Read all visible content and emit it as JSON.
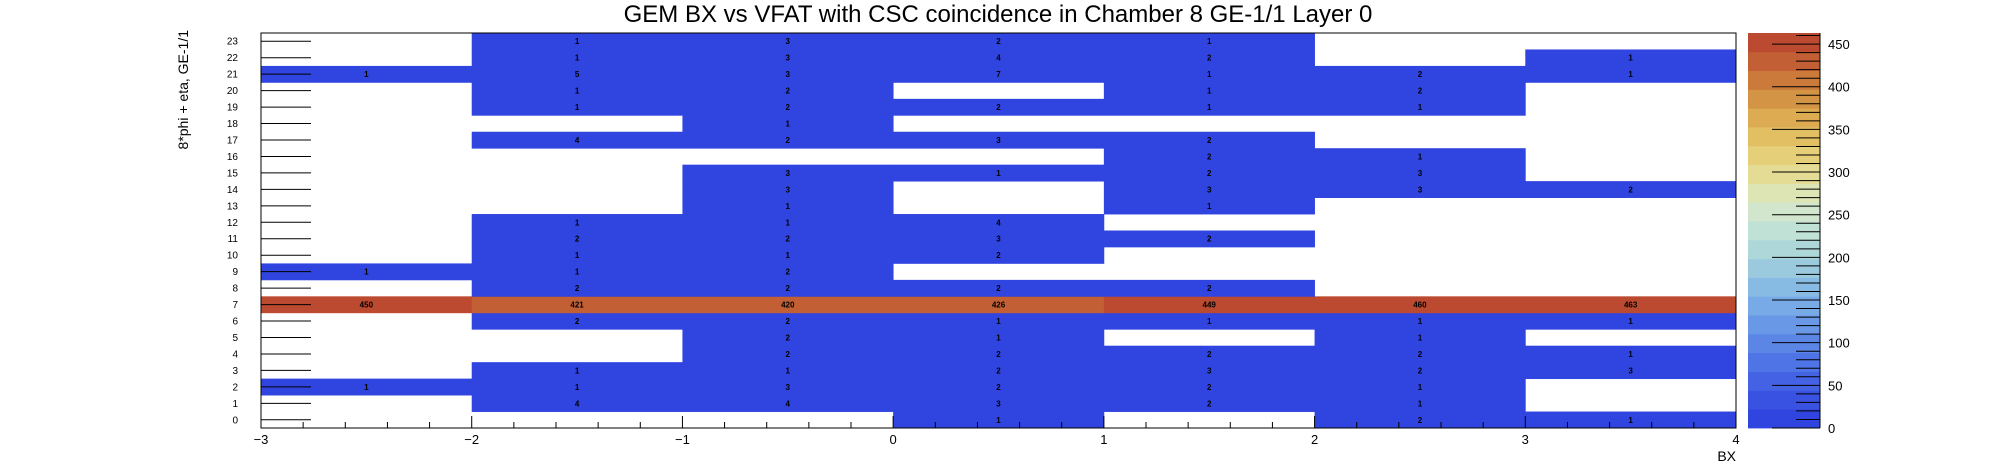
{
  "chart_data": {
    "type": "heatmap",
    "title": "GEM BX vs VFAT with CSC coincidence in Chamber 8 GE-1/1 Layer 0",
    "xlabel": "BX",
    "ylabel": "8*phi + eta, GE-1/1",
    "x_edges": [
      -3,
      -2,
      -1,
      0,
      1,
      2,
      3,
      4
    ],
    "x_tick_labels": [
      "−3",
      "−2",
      "−1",
      "0",
      "1",
      "2",
      "3",
      "4"
    ],
    "y_bins": [
      0,
      1,
      2,
      3,
      4,
      5,
      6,
      7,
      8,
      9,
      10,
      11,
      12,
      13,
      14,
      15,
      16,
      17,
      18,
      19,
      20,
      21,
      22,
      23
    ],
    "zlim": [
      0,
      463
    ],
    "z_ticks": [
      0,
      50,
      100,
      150,
      200,
      250,
      300,
      350,
      400,
      450
    ],
    "grid": false,
    "cells": [
      {
        "y": 0,
        "values": [
          0,
          0,
          0,
          1,
          0,
          2,
          1
        ]
      },
      {
        "y": 1,
        "values": [
          0,
          4,
          4,
          3,
          2,
          1,
          0
        ]
      },
      {
        "y": 2,
        "values": [
          1,
          1,
          3,
          2,
          2,
          1,
          0
        ]
      },
      {
        "y": 3,
        "values": [
          0,
          1,
          1,
          2,
          3,
          2,
          3
        ]
      },
      {
        "y": 4,
        "values": [
          0,
          0,
          2,
          2,
          2,
          2,
          1
        ]
      },
      {
        "y": 5,
        "values": [
          0,
          0,
          2,
          1,
          0,
          1,
          0
        ]
      },
      {
        "y": 6,
        "values": [
          0,
          2,
          2,
          1,
          1,
          1,
          1
        ]
      },
      {
        "y": 7,
        "values": [
          450,
          421,
          420,
          426,
          449,
          460,
          463
        ]
      },
      {
        "y": 8,
        "values": [
          0,
          2,
          2,
          2,
          2,
          0,
          0
        ]
      },
      {
        "y": 9,
        "values": [
          1,
          1,
          2,
          0,
          0,
          0,
          0
        ]
      },
      {
        "y": 10,
        "values": [
          0,
          1,
          1,
          2,
          0,
          0,
          0
        ]
      },
      {
        "y": 11,
        "values": [
          0,
          2,
          2,
          3,
          2,
          0,
          0
        ]
      },
      {
        "y": 12,
        "values": [
          0,
          1,
          1,
          4,
          0,
          0,
          0
        ]
      },
      {
        "y": 13,
        "values": [
          0,
          0,
          1,
          0,
          1,
          0,
          0
        ]
      },
      {
        "y": 14,
        "values": [
          0,
          0,
          3,
          0,
          3,
          3,
          2
        ]
      },
      {
        "y": 15,
        "values": [
          0,
          0,
          3,
          1,
          2,
          3,
          0
        ]
      },
      {
        "y": 16,
        "values": [
          0,
          0,
          0,
          0,
          2,
          1,
          0
        ]
      },
      {
        "y": 17,
        "values": [
          0,
          4,
          2,
          3,
          2,
          0,
          0
        ]
      },
      {
        "y": 18,
        "values": [
          0,
          0,
          1,
          0,
          0,
          0,
          0
        ]
      },
      {
        "y": 19,
        "values": [
          0,
          1,
          2,
          2,
          1,
          1,
          0
        ]
      },
      {
        "y": 20,
        "values": [
          0,
          1,
          2,
          0,
          1,
          2,
          0
        ]
      },
      {
        "y": 21,
        "values": [
          1,
          5,
          3,
          7,
          1,
          2,
          1
        ]
      },
      {
        "y": 22,
        "values": [
          0,
          1,
          3,
          4,
          2,
          0,
          1
        ]
      },
      {
        "y": 23,
        "values": [
          0,
          1,
          3,
          2,
          1,
          0,
          0
        ]
      }
    ],
    "palette": [
      "#3044e0",
      "#3a52e2",
      "#4462e4",
      "#4f74e5",
      "#5b86e6",
      "#6898e6",
      "#77aae6",
      "#88bbe4",
      "#9bcade",
      "#aed7da",
      "#c0e1d6",
      "#d1e6cc",
      "#dee5b4",
      "#e4dc95",
      "#e5cf79",
      "#e2bf63",
      "#dcab52",
      "#d49445",
      "#cb7a3c",
      "#c25f35",
      "#bb4a30"
    ]
  }
}
